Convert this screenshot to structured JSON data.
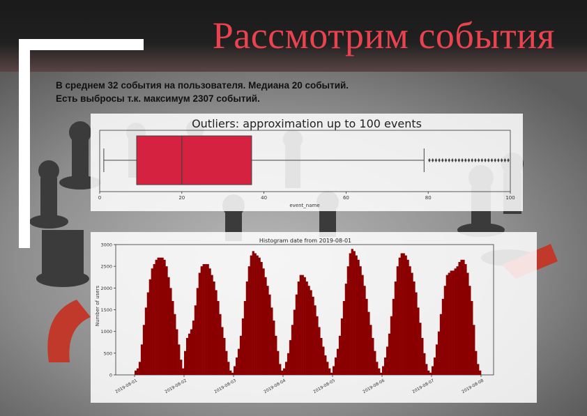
{
  "slide": {
    "title": "Рассмотрим события",
    "subtitle_lines": [
      "В среднем 32 события на пользователя. Медиана 20 событий.",
      "Есть выбросы т.к. максимум 2307 событий."
    ]
  },
  "colors": {
    "title": "#e8434f",
    "box_fill": "#d42240",
    "hist_bar": "#8b0000"
  },
  "chart_data": [
    {
      "type": "box",
      "title": "Outliers: approximation up to 100 events",
      "xlabel": "event_name",
      "xlim": [
        0,
        100
      ],
      "xticks": [
        0,
        20,
        40,
        60,
        80,
        100
      ],
      "whisker_low": 1,
      "q1": 9,
      "median": 20,
      "q3": 37,
      "whisker_high": 79,
      "outliers_range": [
        80,
        100
      ]
    },
    {
      "type": "bar",
      "title": "Histogram date from 2019-08-01",
      "ylabel": "Number of users",
      "ylim": [
        0,
        3000
      ],
      "yticks": [
        0,
        500,
        1000,
        1500,
        2000,
        2500,
        3000
      ],
      "xticks": [
        "2019-08-01",
        "2019-08-02",
        "2019-08-03",
        "2019-08-04",
        "2019-08-05",
        "2019-08-06",
        "2019-08-07",
        "2019-08-08"
      ],
      "values": [
        100,
        150,
        300,
        700,
        1150,
        1550,
        1900,
        2200,
        2450,
        2550,
        2650,
        2700,
        2700,
        2700,
        2650,
        2500,
        2250,
        2000,
        1700,
        1400,
        1050,
        700,
        350,
        150,
        550,
        850,
        950,
        1050,
        1250,
        1600,
        2000,
        2350,
        2500,
        2550,
        2550,
        2550,
        2450,
        2300,
        2150,
        1950,
        1700,
        1400,
        1100,
        850,
        550,
        300,
        100,
        50,
        200,
        400,
        600,
        900,
        1300,
        1700,
        2150,
        2500,
        2750,
        2850,
        2800,
        2750,
        2700,
        2600,
        2450,
        2250,
        2050,
        1850,
        1550,
        1250,
        900,
        550,
        250,
        100,
        150,
        300,
        500,
        800,
        1150,
        1500,
        1850,
        2150,
        2300,
        2300,
        2250,
        2150,
        2050,
        1950,
        1800,
        1600,
        1350,
        1100,
        850,
        650,
        450,
        300,
        150,
        50,
        200,
        400,
        600,
        900,
        1300,
        1700,
        2100,
        2500,
        2800,
        2900,
        2850,
        2750,
        2650,
        2500,
        2300,
        2050,
        1750,
        1450,
        1150,
        850,
        550,
        300,
        150,
        50,
        200,
        400,
        650,
        950,
        1350,
        1750,
        2150,
        2500,
        2700,
        2800,
        2800,
        2750,
        2650,
        2500,
        2350,
        2150,
        1900,
        1550,
        1200,
        850,
        500,
        250,
        100,
        50,
        200,
        400,
        700,
        1000,
        1400,
        1750,
        2050,
        2300,
        2350,
        2400,
        2400,
        2450,
        2500,
        2600,
        2650,
        2650,
        2550,
        2350,
        2050,
        1700,
        1150,
        550,
        250,
        100
      ]
    }
  ]
}
